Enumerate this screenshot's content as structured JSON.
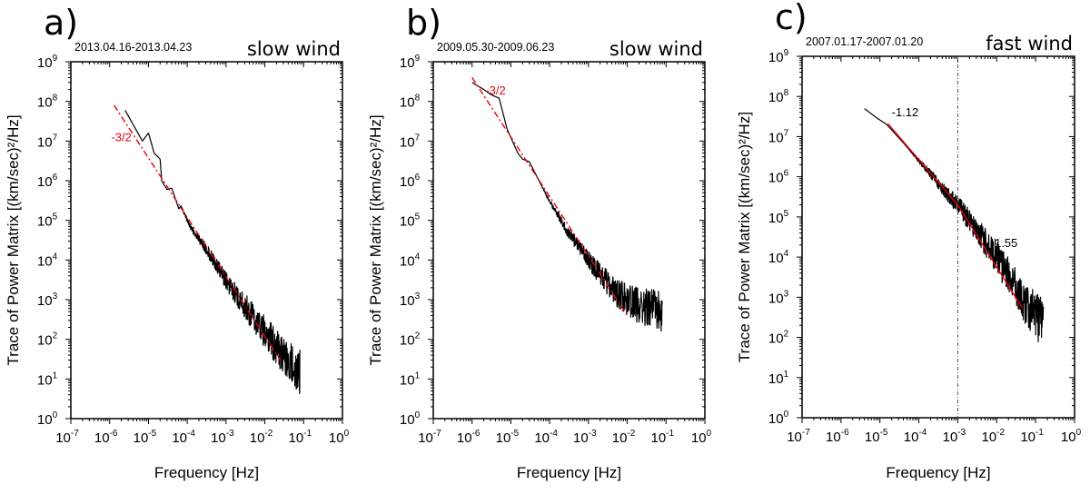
{
  "chart_data": [
    {
      "type": "line",
      "panel_label": "a)",
      "date_range": "2013.04.16-2013.04.23",
      "wind_type": "slow wind",
      "xlabel": "Frequency [Hz]",
      "ylabel": "Trace of Power Matrix [(km/sec)²/Hz]",
      "xscale": "log",
      "yscale": "log",
      "xlim_exp": [
        -7,
        0
      ],
      "ylim_exp": [
        0,
        9
      ],
      "x_tick_exponents": [
        "-7",
        "-6",
        "-5",
        "-4",
        "-3",
        "-2",
        "-1",
        "0"
      ],
      "y_tick_exponents": [
        "0",
        "1",
        "2",
        "3",
        "4",
        "5",
        "6",
        "7",
        "8",
        "9"
      ],
      "series": [
        {
          "name": "spectrum",
          "color": "#000000",
          "points": [
            [
              2.5e-06,
              60000000.0
            ],
            [
              7e-06,
              10000000.0
            ],
            [
              1e-05,
              16000000.0
            ],
            [
              1.4e-05,
              5000000.0
            ],
            [
              2e-05,
              3500000.0
            ],
            [
              2.2e-05,
              1000000.0
            ],
            [
              3e-05,
              600000.0
            ],
            [
              4e-05,
              650000.0
            ],
            [
              6e-05,
              200000.0
            ],
            [
              7e-05,
              220000.0
            ],
            [
              0.0001,
              100000.0
            ],
            [
              0.00013,
              60000.0
            ],
            [
              0.0003,
              20000.0
            ],
            [
              0.001,
              3000.0
            ],
            [
              0.01,
              150.0
            ],
            [
              0.03,
              40.0
            ],
            [
              0.08,
              15.0
            ]
          ]
        }
      ],
      "fits": [
        {
          "label": "-3/2",
          "slope": -1.5,
          "from": [
            1.3e-06,
            80000000.0
          ],
          "to": [
            0.025,
            30.0
          ],
          "style": "dashdot",
          "color": "#e8000b",
          "label_at": [
            1.1e-06,
            10000000.0
          ]
        }
      ],
      "vline": null
    },
    {
      "type": "line",
      "panel_label": "b)",
      "date_range": "2009.05.30-2009.06.23",
      "wind_type": "slow wind",
      "xlabel": "Frequency [Hz]",
      "ylabel": "Trace of Power Matrix [(km/sec)²/Hz]",
      "xscale": "log",
      "yscale": "log",
      "xlim_exp": [
        -7,
        0
      ],
      "ylim_exp": [
        0,
        9
      ],
      "x_tick_exponents": [
        "-7",
        "-6",
        "-5",
        "-4",
        "-3",
        "-2",
        "-1",
        "0"
      ],
      "y_tick_exponents": [
        "0",
        "1",
        "2",
        "3",
        "4",
        "5",
        "6",
        "7",
        "8",
        "9"
      ],
      "series": [
        {
          "name": "spectrum",
          "color": "#000000",
          "points": [
            [
              1e-06,
              300000000.0
            ],
            [
              2e-06,
              200000000.0
            ],
            [
              3e-06,
              150000000.0
            ],
            [
              5e-06,
              120000000.0
            ],
            [
              6e-06,
              60000000.0
            ],
            [
              8e-06,
              20000000.0
            ],
            [
              1.5e-05,
              5000000.0
            ],
            [
              2e-05,
              3500000.0
            ],
            [
              3e-05,
              3000000.0
            ],
            [
              0.0001,
              300000.0
            ],
            [
              0.0003,
              50000.0
            ],
            [
              0.001,
              10000.0
            ],
            [
              0.005,
              1500.0
            ],
            [
              0.02,
              700.0
            ],
            [
              0.08,
              450.0
            ]
          ]
        }
      ],
      "fits": [
        {
          "label": "-3/2",
          "slope": -1.5,
          "from": [
            1e-06,
            400000000.0
          ],
          "to": [
            0.01,
            400.0
          ],
          "style": "dashdot",
          "color": "#e8000b",
          "label_at": [
            2.2e-06,
            150000000.0
          ]
        }
      ],
      "vline": null
    },
    {
      "type": "line",
      "panel_label": "c)",
      "date_range": "2007.01.17-2007.01.20",
      "wind_type": "fast wind",
      "xlabel": "Frequency [Hz]",
      "ylabel": "Trace of Power Matrix [(km/sec)²/Hz]",
      "xscale": "log",
      "yscale": "log",
      "xlim_exp": [
        -7,
        0
      ],
      "ylim_exp": [
        0,
        9
      ],
      "x_tick_exponents": [
        "-7",
        "-6",
        "-5",
        "-4",
        "-3",
        "-2",
        "-1",
        "0"
      ],
      "y_tick_exponents": [
        "0",
        "1",
        "2",
        "3",
        "4",
        "5",
        "6",
        "7",
        "8",
        "9"
      ],
      "series": [
        {
          "name": "spectrum",
          "color": "#000000",
          "points": [
            [
              4e-06,
              50000000.0
            ],
            [
              8e-06,
              30000000.0
            ],
            [
              1.5e-05,
              20000000.0
            ],
            [
              4e-05,
              7000000.0
            ],
            [
              0.0001,
              2500000.0
            ],
            [
              0.0002,
              1200000.0
            ],
            [
              0.0005,
              400000.0
            ],
            [
              0.001,
              200000.0
            ],
            [
              0.01,
              10000.0
            ],
            [
              0.05,
              800.0
            ],
            [
              0.16,
              200.0
            ]
          ]
        }
      ],
      "fits": [
        {
          "label": "-1.12",
          "slope": -1.12,
          "from": [
            1.6e-05,
            21000000.0
          ],
          "to": [
            0.001,
            200000.0
          ],
          "style": "solid",
          "color": "#e8000b",
          "label_color": "#000000",
          "label_at": [
            2e-05,
            32000000.0
          ]
        },
        {
          "label": "-1.55",
          "slope": -1.55,
          "from": [
            0.001,
            200000.0
          ],
          "to": [
            0.045,
            550.0
          ],
          "style": "solid",
          "color": "#e8000b",
          "label_color": "#000000",
          "label_at": [
            0.007,
            18000.0
          ]
        }
      ],
      "vline": {
        "x": 0.001,
        "style": "dotted",
        "color": "#555555"
      }
    }
  ]
}
